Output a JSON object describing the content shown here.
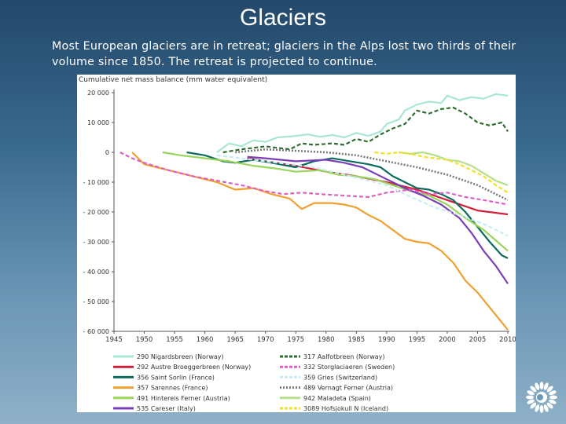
{
  "slide": {
    "title": "Glaciers",
    "subtitle": "Most European glaciers are in retreat; glaciers in the Alps lost two thirds of their volume since 1850. The retreat is projected to continue."
  },
  "logo": {
    "icon": "sun-icon",
    "color": "#ffffff"
  },
  "chart_data": {
    "type": "line",
    "title": "",
    "ylabel": "Cumulative net mass balance (mm water equivalent)",
    "xlabel": "",
    "xlim": [
      1945,
      2010
    ],
    "ylim": [
      -60000,
      20000
    ],
    "xticks": [
      1945,
      1950,
      1955,
      1960,
      1965,
      1970,
      1975,
      1980,
      1985,
      1990,
      1995,
      2000,
      2005,
      2010
    ],
    "yticks": [
      20000,
      10000,
      0,
      -10000,
      -20000,
      -30000,
      -40000,
      -50000,
      -60000
    ],
    "ytick_labels": [
      "20 000",
      "10 000",
      "0",
      "- 10 000",
      "- 20 000",
      "- 30 000",
      "- 40 000",
      "- 50 000",
      "- 60 000"
    ],
    "grid": false,
    "legend_position": "bottom",
    "series": [
      {
        "name": "290 Nigardsbreen (Norway)",
        "color": "#a8e6d6",
        "dash": "solid",
        "points": [
          [
            1962,
            0
          ],
          [
            1964,
            3000
          ],
          [
            1966,
            2000
          ],
          [
            1968,
            4000
          ],
          [
            1970,
            3500
          ],
          [
            1972,
            5000
          ],
          [
            1975,
            5500
          ],
          [
            1977,
            6000
          ],
          [
            1979,
            5200
          ],
          [
            1981,
            5800
          ],
          [
            1983,
            5000
          ],
          [
            1985,
            6500
          ],
          [
            1987,
            5500
          ],
          [
            1989,
            7000
          ],
          [
            1990,
            9500
          ],
          [
            1992,
            11000
          ],
          [
            1993,
            14000
          ],
          [
            1995,
            16000
          ],
          [
            1997,
            17000
          ],
          [
            1999,
            16500
          ],
          [
            2000,
            19000
          ],
          [
            2002,
            17500
          ],
          [
            2004,
            18500
          ],
          [
            2006,
            18000
          ],
          [
            2008,
            19500
          ],
          [
            2010,
            19000
          ]
        ]
      },
      {
        "name": "292 Austre Broeggerbreen (Norway)",
        "color": "#d3203a",
        "dash": "solid",
        "points": [
          [
            1967,
            -2000
          ],
          [
            1970,
            -3000
          ],
          [
            1975,
            -4500
          ],
          [
            1980,
            -6500
          ],
          [
            1985,
            -8000
          ],
          [
            1990,
            -10000
          ],
          [
            1995,
            -12500
          ],
          [
            2000,
            -16000
          ],
          [
            2005,
            -19500
          ],
          [
            2010,
            -20800
          ]
        ]
      },
      {
        "name": "356 Saint Sorlin (France)",
        "color": "#0d6b5e",
        "dash": "solid",
        "points": [
          [
            1957,
            0
          ],
          [
            1960,
            -1000
          ],
          [
            1963,
            -3000
          ],
          [
            1965,
            -3500
          ],
          [
            1968,
            -2500
          ],
          [
            1971,
            -3500
          ],
          [
            1975,
            -5000
          ],
          [
            1978,
            -3000
          ],
          [
            1981,
            -2000
          ],
          [
            1984,
            -3000
          ],
          [
            1987,
            -4000
          ],
          [
            1989,
            -5000
          ],
          [
            1991,
            -8000
          ],
          [
            1993,
            -10000
          ],
          [
            1995,
            -12000
          ],
          [
            1997,
            -12500
          ],
          [
            1999,
            -14000
          ],
          [
            2001,
            -16000
          ],
          [
            2003,
            -20000
          ],
          [
            2005,
            -25000
          ],
          [
            2007,
            -30000
          ],
          [
            2009,
            -34500
          ],
          [
            2010,
            -35500
          ]
        ]
      },
      {
        "name": "357 Sarennes (France)",
        "color": "#f0a030",
        "dash": "solid",
        "points": [
          [
            1948,
            0
          ],
          [
            1950,
            -4000
          ],
          [
            1953,
            -5500
          ],
          [
            1956,
            -7000
          ],
          [
            1959,
            -8500
          ],
          [
            1962,
            -10000
          ],
          [
            1965,
            -12500
          ],
          [
            1968,
            -12000
          ],
          [
            1971,
            -14000
          ],
          [
            1974,
            -15500
          ],
          [
            1976,
            -19000
          ],
          [
            1978,
            -17000
          ],
          [
            1981,
            -17000
          ],
          [
            1983,
            -17500
          ],
          [
            1985,
            -18500
          ],
          [
            1987,
            -21000
          ],
          [
            1989,
            -23000
          ],
          [
            1991,
            -26000
          ],
          [
            1993,
            -29000
          ],
          [
            1995,
            -30000
          ],
          [
            1997,
            -30500
          ],
          [
            1999,
            -33000
          ],
          [
            2001,
            -37000
          ],
          [
            2003,
            -43000
          ],
          [
            2005,
            -47000
          ],
          [
            2007,
            -52000
          ],
          [
            2009,
            -57000
          ],
          [
            2010,
            -59500
          ]
        ]
      },
      {
        "name": "491 Hintereis Ferner (Austria)",
        "color": "#9bd45a",
        "dash": "solid",
        "points": [
          [
            1953,
            0
          ],
          [
            1956,
            -1000
          ],
          [
            1960,
            -2000
          ],
          [
            1964,
            -3000
          ],
          [
            1968,
            -4500
          ],
          [
            1972,
            -5500
          ],
          [
            1975,
            -6500
          ],
          [
            1979,
            -6000
          ],
          [
            1982,
            -7500
          ],
          [
            1985,
            -8000
          ],
          [
            1988,
            -9000
          ],
          [
            1991,
            -11000
          ],
          [
            1994,
            -13000
          ],
          [
            1997,
            -14500
          ],
          [
            2000,
            -17500
          ],
          [
            2003,
            -22000
          ],
          [
            2006,
            -26000
          ],
          [
            2010,
            -33000
          ]
        ]
      },
      {
        "name": "535 Careser (Italy)",
        "color": "#7a3fb8",
        "dash": "solid",
        "points": [
          [
            1967,
            -1500
          ],
          [
            1970,
            -2000
          ],
          [
            1975,
            -3000
          ],
          [
            1980,
            -2500
          ],
          [
            1983,
            -3500
          ],
          [
            1986,
            -5000
          ],
          [
            1990,
            -9000
          ],
          [
            1993,
            -12000
          ],
          [
            1996,
            -14500
          ],
          [
            1999,
            -17500
          ],
          [
            2002,
            -22000
          ],
          [
            2004,
            -27000
          ],
          [
            2006,
            -33000
          ],
          [
            2008,
            -38000
          ],
          [
            2010,
            -44000
          ]
        ]
      },
      {
        "name": "317 Aalfotbreen (Norway)",
        "color": "#2c6e2f",
        "dash": "dashed",
        "points": [
          [
            1963,
            0
          ],
          [
            1966,
            1000
          ],
          [
            1970,
            2000
          ],
          [
            1974,
            1000
          ],
          [
            1976,
            3000
          ],
          [
            1978,
            2500
          ],
          [
            1981,
            3000
          ],
          [
            1983,
            2500
          ],
          [
            1985,
            4500
          ],
          [
            1987,
            3500
          ],
          [
            1989,
            6000
          ],
          [
            1991,
            8000
          ],
          [
            1993,
            9500
          ],
          [
            1995,
            14000
          ],
          [
            1997,
            13000
          ],
          [
            1999,
            14500
          ],
          [
            2001,
            15000
          ],
          [
            2003,
            13000
          ],
          [
            2005,
            10000
          ],
          [
            2007,
            9000
          ],
          [
            2009,
            10000
          ],
          [
            2010,
            7000
          ]
        ]
      },
      {
        "name": "332 Storglaciaeren (Sweden)",
        "color": "#df5fc8",
        "dash": "dashed",
        "points": [
          [
            1946,
            0
          ],
          [
            1948,
            -2000
          ],
          [
            1950,
            -3500
          ],
          [
            1954,
            -6000
          ],
          [
            1958,
            -8000
          ],
          [
            1962,
            -9500
          ],
          [
            1966,
            -11000
          ],
          [
            1970,
            -13000
          ],
          [
            1973,
            -14000
          ],
          [
            1976,
            -13500
          ],
          [
            1979,
            -14000
          ],
          [
            1983,
            -14500
          ],
          [
            1987,
            -15000
          ],
          [
            1990,
            -13500
          ],
          [
            1994,
            -12500
          ],
          [
            1997,
            -14000
          ],
          [
            2000,
            -13500
          ],
          [
            2003,
            -15000
          ],
          [
            2006,
            -16000
          ],
          [
            2010,
            -17500
          ]
        ]
      },
      {
        "name": "359 Gries (Switzerland)",
        "color": "#c8ecf5",
        "dash": "dashed",
        "points": [
          [
            1962,
            -1000
          ],
          [
            1966,
            -2000
          ],
          [
            1970,
            -3000
          ],
          [
            1974,
            -4000
          ],
          [
            1978,
            -5000
          ],
          [
            1982,
            -7000
          ],
          [
            1986,
            -9000
          ],
          [
            1990,
            -11000
          ],
          [
            1994,
            -15000
          ],
          [
            1998,
            -18500
          ],
          [
            2002,
            -21000
          ],
          [
            2006,
            -24000
          ],
          [
            2010,
            -28000
          ]
        ]
      },
      {
        "name": "489 Vernagt Ferner (Austria)",
        "color": "#7a7a7a",
        "dash": "dotted",
        "points": [
          [
            1965,
            0
          ],
          [
            1970,
            1000
          ],
          [
            1975,
            500
          ],
          [
            1980,
            0
          ],
          [
            1985,
            -1000
          ],
          [
            1990,
            -3000
          ],
          [
            1995,
            -5000
          ],
          [
            2000,
            -7500
          ],
          [
            2005,
            -11000
          ],
          [
            2010,
            -16000
          ]
        ]
      },
      {
        "name": "942 Maladeta (Spain)",
        "color": "#b5e08a",
        "dash": "solid",
        "points": [
          [
            1992,
            0
          ],
          [
            1994,
            -500
          ],
          [
            1996,
            0
          ],
          [
            1998,
            -1000
          ],
          [
            2000,
            -2500
          ],
          [
            2002,
            -3000
          ],
          [
            2004,
            -4500
          ],
          [
            2006,
            -7000
          ],
          [
            2008,
            -9500
          ],
          [
            2010,
            -11000
          ]
        ]
      },
      {
        "name": "3089 Hofsjokull N (Iceland)",
        "color": "#f2e02a",
        "dash": "dashed",
        "points": [
          [
            1988,
            0
          ],
          [
            1990,
            -500
          ],
          [
            1992,
            0
          ],
          [
            1994,
            -500
          ],
          [
            1996,
            -1500
          ],
          [
            1998,
            -2000
          ],
          [
            2000,
            -2500
          ],
          [
            2002,
            -4000
          ],
          [
            2004,
            -6000
          ],
          [
            2006,
            -8000
          ],
          [
            2008,
            -11000
          ],
          [
            2010,
            -13500
          ]
        ]
      }
    ]
  }
}
